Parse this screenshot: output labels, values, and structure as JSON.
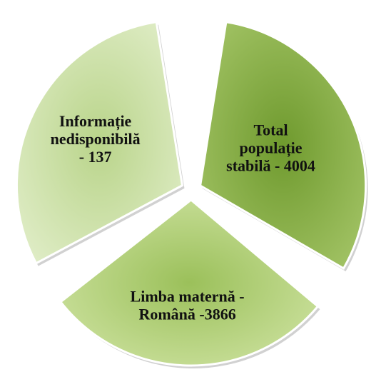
{
  "chart_data": {
    "type": "pie",
    "title": "",
    "slices": [
      {
        "label_lines": [
          "Total",
          "populație",
          "stabilă - 4004"
        ],
        "value": 4004,
        "color": "#6f9a2e",
        "color_light": "#a7c76a"
      },
      {
        "label_lines": [
          "Limba maternă -",
          "Română -3866"
        ],
        "value": 3866,
        "color": "#9bc05a",
        "color_light": "#d3e6a8"
      },
      {
        "label_lines": [
          "Informație",
          "nedisponibilă",
          "- 137"
        ],
        "value": 137,
        "color": "#b9d48a",
        "color_light": "#e3efcc"
      }
    ],
    "legend": "none",
    "exploded": true,
    "style": "3d-beveled"
  }
}
